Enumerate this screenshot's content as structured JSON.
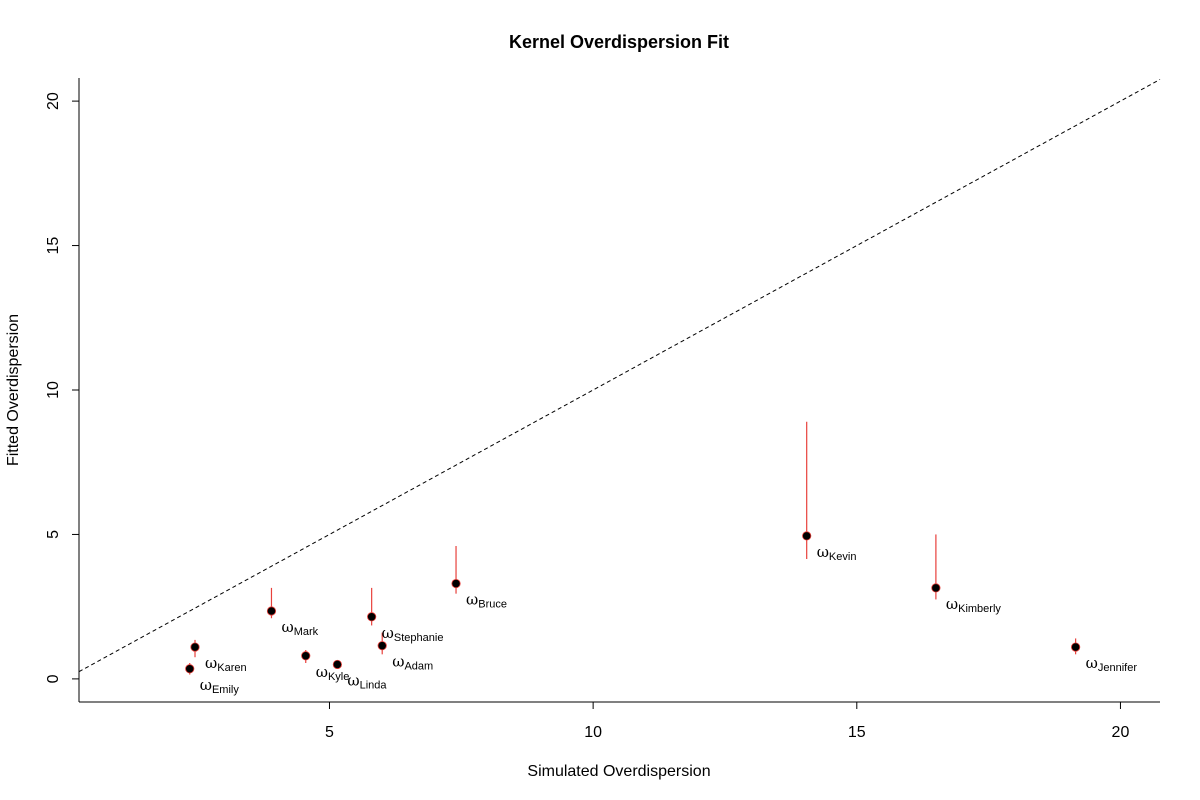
{
  "chart_data": {
    "type": "scatter",
    "title": "Kernel Overdispersion Fit",
    "xlabel": "Simulated Overdispersion",
    "ylabel": "Fitted Overdispersion",
    "xlim": [
      0.25,
      20.75
    ],
    "ylim": [
      -0.8,
      20.8
    ],
    "xticks": [
      5,
      10,
      15,
      20
    ],
    "yticks": [
      0,
      5,
      10,
      15,
      20
    ],
    "reference_line": {
      "type": "identity",
      "style": "dashed",
      "color": "#000000"
    },
    "point_symbol": "ω",
    "colors": {
      "points": "#000000",
      "intervals": "#e8413c",
      "axes": "#000000"
    },
    "points": [
      {
        "name": "Emily",
        "x": 2.35,
        "y": 0.35,
        "lo": 0.15,
        "hi": 0.55
      },
      {
        "name": "Karen",
        "x": 2.45,
        "y": 1.1,
        "lo": 0.75,
        "hi": 1.35
      },
      {
        "name": "Mark",
        "x": 3.9,
        "y": 2.35,
        "lo": 2.1,
        "hi": 3.15
      },
      {
        "name": "Kyle",
        "x": 4.55,
        "y": 0.8,
        "lo": 0.55,
        "hi": 1.0
      },
      {
        "name": "Linda",
        "x": 5.15,
        "y": 0.5,
        "lo": 0.35,
        "hi": 0.65
      },
      {
        "name": "Stephanie",
        "x": 5.8,
        "y": 2.15,
        "lo": 1.85,
        "hi": 3.15
      },
      {
        "name": "Adam",
        "x": 6.0,
        "y": 1.15,
        "lo": 0.85,
        "hi": 1.6
      },
      {
        "name": "Bruce",
        "x": 7.4,
        "y": 3.3,
        "lo": 2.95,
        "hi": 4.6
      },
      {
        "name": "Kevin",
        "x": 14.05,
        "y": 4.95,
        "lo": 4.15,
        "hi": 8.9
      },
      {
        "name": "Kimberly",
        "x": 16.5,
        "y": 3.15,
        "lo": 2.75,
        "hi": 5.0
      },
      {
        "name": "Jennifer",
        "x": 19.15,
        "y": 1.1,
        "lo": 0.85,
        "hi": 1.4
      }
    ]
  }
}
